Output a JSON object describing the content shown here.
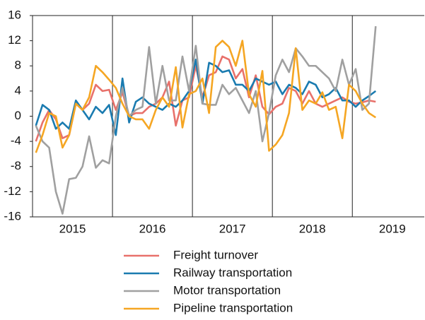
{
  "chart_data": {
    "type": "line",
    "x": [
      2015.042,
      2015.125,
      2015.208,
      2015.292,
      2015.375,
      2015.458,
      2015.542,
      2015.625,
      2015.708,
      2015.792,
      2015.875,
      2015.958,
      2016.042,
      2016.125,
      2016.208,
      2016.292,
      2016.375,
      2016.458,
      2016.542,
      2016.625,
      2016.708,
      2016.792,
      2016.875,
      2016.958,
      2017.042,
      2017.125,
      2017.208,
      2017.292,
      2017.375,
      2017.458,
      2017.542,
      2017.625,
      2017.708,
      2017.792,
      2017.875,
      2017.958,
      2018.042,
      2018.125,
      2018.208,
      2018.292,
      2018.375,
      2018.458,
      2018.542,
      2018.625,
      2018.708,
      2018.792,
      2018.875,
      2018.958,
      2019.042,
      2019.125,
      2019.208,
      2019.292
    ],
    "series": [
      {
        "name": "Freight turnover",
        "color": "#e8716b",
        "values": [
          -4,
          -1,
          1,
          -0.5,
          -3.5,
          -3,
          2,
          1,
          2,
          5,
          4,
          4.2,
          1,
          3.8,
          0,
          0.5,
          0.5,
          1.5,
          2,
          3,
          5.5,
          -1.5,
          2.5,
          3,
          8,
          3,
          6.5,
          7,
          9.5,
          9,
          6,
          7.5,
          3,
          6.5,
          1.5,
          0.3,
          1.5,
          2,
          4.5,
          4,
          2,
          4,
          2,
          1.5,
          2,
          2.5,
          3,
          2.3,
          2,
          2.2,
          2.5,
          2.3
        ]
      },
      {
        "name": "Railway transportation",
        "color": "#1a7bb0",
        "values": [
          -1.5,
          1.8,
          1,
          -2,
          -1,
          -2,
          2.5,
          1,
          -0.5,
          1.5,
          0.5,
          1.8,
          -3,
          6,
          -1,
          2.3,
          3,
          2,
          1.5,
          1,
          2,
          1.5,
          2.5,
          4,
          9,
          2,
          8.5,
          8,
          7,
          7.3,
          5,
          5,
          4,
          6,
          5.5,
          5,
          5.5,
          3.5,
          5,
          4.5,
          3.5,
          5.5,
          5,
          3,
          3.5,
          4.5,
          2.5,
          2.5,
          1.5,
          2.5,
          3.2,
          4
        ]
      },
      {
        "name": "Motor transportation",
        "color": "#a0a0a0",
        "values": [
          -1.5,
          -4,
          -5,
          -12,
          -15.5,
          -10,
          -9.8,
          -8,
          -3.2,
          -8.2,
          -7,
          -7.5,
          0,
          4.5,
          0,
          1,
          1.5,
          11,
          2,
          8,
          2.5,
          2.5,
          9.5,
          4,
          11.2,
          2,
          1.8,
          1.8,
          5,
          3.5,
          4.5,
          2.5,
          0.5,
          4,
          -4,
          0.5,
          6.5,
          9,
          7,
          10.8,
          9.5,
          8,
          8,
          7,
          6,
          4,
          9,
          5,
          7.5,
          1,
          2,
          14.3
        ]
      },
      {
        "name": "Pipeline transportation",
        "color": "#f5a623",
        "values": [
          -5.8,
          -3,
          0.5,
          0,
          -5,
          -3,
          2,
          1,
          3,
          8,
          7,
          5.8,
          4.5,
          2,
          0,
          -0.5,
          -0.5,
          -2,
          1,
          3,
          1.5,
          7.8,
          -1.8,
          3.5,
          4,
          6,
          0.5,
          11,
          12,
          11,
          8,
          12,
          3.5,
          1.5,
          7.2,
          -5.5,
          -4.5,
          -3,
          0.5,
          10.8,
          1,
          2.5,
          2,
          3.8,
          1,
          1.5,
          -3.5,
          5,
          4,
          2,
          0.5,
          -0.2
        ]
      }
    ],
    "xlim": [
      2015,
      2019.9
    ],
    "xticks": [
      {
        "value": 2015.5,
        "label": "2015"
      },
      {
        "value": 2016.5,
        "label": "2016"
      },
      {
        "value": 2017.5,
        "label": "2017"
      },
      {
        "value": 2018.5,
        "label": "2018"
      },
      {
        "value": 2019.5,
        "label": "2019"
      }
    ],
    "xgrid": [
      2016,
      2017,
      2018,
      2019
    ],
    "ylim": [
      -16,
      16
    ],
    "yticks": [
      -16,
      -12,
      -8,
      -4,
      0,
      4,
      8,
      12,
      16
    ],
    "legend": "bottom"
  }
}
